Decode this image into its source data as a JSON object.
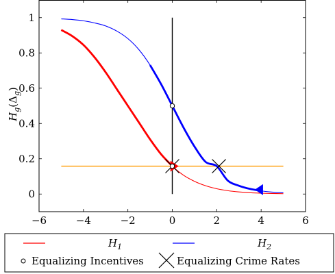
{
  "chart_data": {
    "type": "line",
    "title": "",
    "xlabel": "",
    "ylabel": "H_g(Δ_g)",
    "ylabel_parts": {
      "main": "H",
      "sub1": "g",
      "open": "(Δ",
      "sub2": "g",
      "close": ")"
    },
    "xlim": [
      -6,
      6
    ],
    "ylim": [
      -0.1,
      1.1
    ],
    "xticks": [
      -6,
      -4,
      -2,
      0,
      2,
      4,
      6
    ],
    "xtick_labels": [
      "−6",
      "−4",
      "−2",
      "0",
      "2",
      "4",
      "6"
    ],
    "yticks": [
      0,
      0.2,
      0.4,
      0.6,
      0.8,
      1
    ],
    "ytick_labels": [
      "0",
      "0.2",
      "0.4",
      "0.6",
      "0.8",
      "1"
    ],
    "grid": false,
    "legend_position": "bottom",
    "series": [
      {
        "name": "H1",
        "name_main": "H",
        "name_sub": "1",
        "color": "#ff0000",
        "x": [
          -5,
          -4.5,
          -4,
          -3.5,
          -3,
          -2.5,
          -2,
          -1.5,
          -1,
          -0.5,
          0,
          0.5,
          1,
          1.5,
          2,
          2.5,
          3,
          3.5,
          4,
          4.5,
          5
        ],
        "y": [
          0.93,
          0.895,
          0.845,
          0.775,
          0.69,
          0.595,
          0.5,
          0.405,
          0.31,
          0.225,
          0.158,
          0.107,
          0.072,
          0.047,
          0.03,
          0.019,
          0.012,
          0.0075,
          0.0047,
          0.003,
          0.0019
        ]
      },
      {
        "name": "H2",
        "name_main": "H",
        "name_sub": "2",
        "color": "#0000ff",
        "x": [
          -5,
          -4.5,
          -4,
          -3.5,
          -3,
          -2.5,
          -2,
          -1.5,
          -1,
          -0.5,
          0,
          0.5,
          1,
          1.5,
          2,
          2.5,
          3,
          3.5,
          4,
          4.5,
          5
        ],
        "y": [
          0.993,
          0.989,
          0.982,
          0.97,
          0.953,
          0.924,
          0.881,
          0.818,
          0.731,
          0.622,
          0.5,
          0.378,
          0.269,
          0.182,
          0.158,
          0.076,
          0.047,
          0.029,
          0.018,
          0.011,
          0.007
        ]
      }
    ],
    "vertical_line": {
      "x": 0,
      "y_from": 0,
      "y_to": 1,
      "color": "#000000"
    },
    "horizontal_line": {
      "y": 0.158,
      "x_from": -5,
      "x_to": 5,
      "color": "#ff9900"
    },
    "highlight_segments": [
      {
        "series": "H1",
        "x_from": -5,
        "x_to": 0,
        "color": "#ff0000"
      },
      {
        "series": "H2",
        "x_from": -1,
        "x_to": 4,
        "color": "#0000ff"
      }
    ],
    "equalizing_incentives_points": [
      {
        "x": 0,
        "y": 0.5
      },
      {
        "x": 0,
        "y": 0.158
      }
    ],
    "equalizing_crime_points": [
      {
        "x": 0,
        "y": 0.158
      },
      {
        "x": 2.1,
        "y": 0.158
      }
    ],
    "arrow_markers": [
      {
        "series": "H1",
        "x": 0.1,
        "y": 0.158,
        "direction": "right",
        "color": "#ff0000"
      },
      {
        "series": "H2",
        "x": 3.9,
        "y": 0.025,
        "direction": "left",
        "color": "#0000ff"
      }
    ],
    "legend": {
      "row1": [
        {
          "label_main": "H",
          "label_sub": "1",
          "color": "#ff0000"
        },
        {
          "label_main": "H",
          "label_sub": "2",
          "color": "#0000ff"
        }
      ],
      "row2": [
        {
          "marker": "circle",
          "label": "Equalizing Incentives"
        },
        {
          "marker": "cross",
          "label": "Equalizing Crime Rates"
        }
      ]
    }
  }
}
